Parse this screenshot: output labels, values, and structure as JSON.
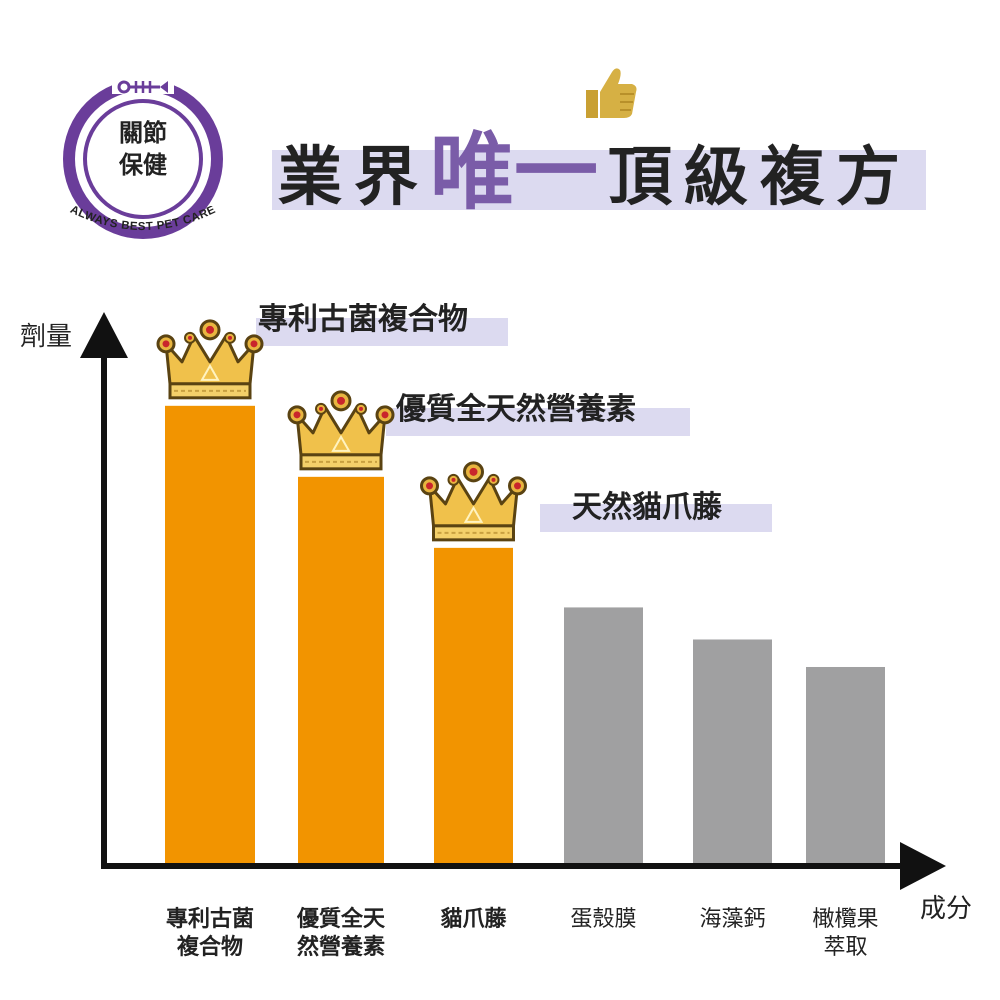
{
  "badge": {
    "line1": "關節",
    "line2": "保健",
    "ring_text": "ALWAYS BEST PET CARE",
    "icons": [
      "fish-bone-icon"
    ],
    "color": "#6a3d9a"
  },
  "headline": {
    "part1": "業界",
    "accent": "唯一",
    "part2": "頂級複方",
    "icons": [
      "thumbs-up-icon"
    ],
    "accent_color": "#7a5ca8"
  },
  "chart_data": {
    "type": "bar",
    "xlabel": "成分",
    "ylabel": "劑量",
    "categories": [
      "專利古菌\n複合物",
      "優質全天\n然營養素",
      "貓爪藤",
      "蛋殼膜",
      "海藻鈣",
      "橄欖果\n萃取"
    ],
    "values": [
      10.0,
      8.45,
      6.9,
      5.6,
      4.9,
      4.3
    ],
    "ylim": [
      0,
      11
    ],
    "highlighted": [
      true,
      true,
      true,
      false,
      false,
      false
    ],
    "colors": {
      "highlight": "#f29400",
      "normal": "#a0a0a1"
    },
    "annotations": [
      "專利古菌複合物",
      "優質全天然營養素",
      "天然貓爪藤"
    ],
    "markers": [
      "crown-icon",
      "crown-icon",
      "crown-icon"
    ],
    "grid": false,
    "legend": "none"
  }
}
